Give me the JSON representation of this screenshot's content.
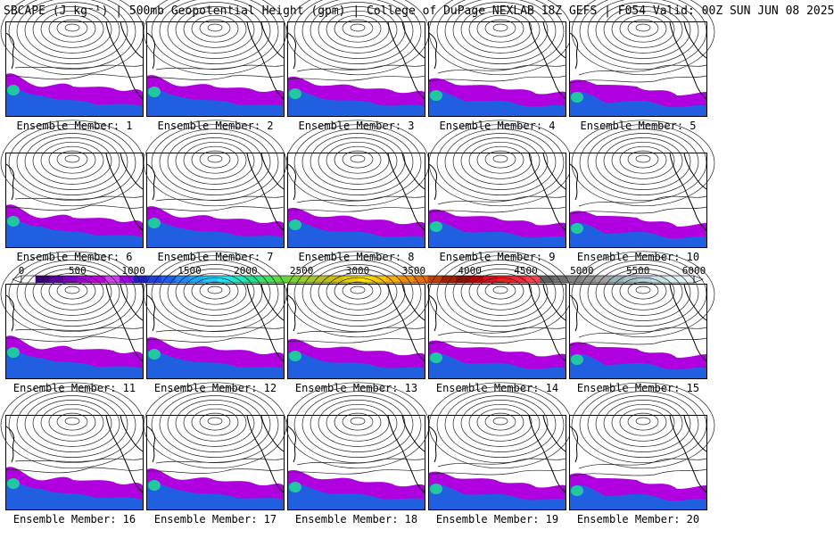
{
  "header": {
    "title": "SBCAPE (J kg⁻¹) | 500mb Geopotential Height (gpm) | College of DuPage NEXLAB 18Z GEFS | F054 Valid: 00Z SUN JUN 08 2025"
  },
  "members": [
    "Ensemble Member: 1",
    "Ensemble Member: 2",
    "Ensemble Member: 3",
    "Ensemble Member: 4",
    "Ensemble Member: 5",
    "Ensemble Member: 6",
    "Ensemble Member: 7",
    "Ensemble Member: 8",
    "Ensemble Member: 9",
    "Ensemble Member: 10",
    "Ensemble Member: 11",
    "Ensemble Member: 12",
    "Ensemble Member: 13",
    "Ensemble Member: 14",
    "Ensemble Member: 15",
    "Ensemble Member: 16",
    "Ensemble Member: 17",
    "Ensemble Member: 18",
    "Ensemble Member: 19",
    "Ensemble Member: 20"
  ],
  "colorbar": {
    "labels": [
      "0",
      "500",
      "1000",
      "1500",
      "2000",
      "2500",
      "3000",
      "3500",
      "4000",
      "4500",
      "5000",
      "5500",
      "6000"
    ],
    "colors": [
      "#ffffff",
      "#3a0078",
      "#5c00a8",
      "#8000c8",
      "#a800d8",
      "#c000e0",
      "#d040e8",
      "#a000f0",
      "#2020c0",
      "#2040e0",
      "#2060f0",
      "#2088f8",
      "#20a8f8",
      "#20c8f8",
      "#20e0f0",
      "#20e8c0",
      "#20e090",
      "#40e060",
      "#60d840",
      "#80d030",
      "#a0c828",
      "#b8c020",
      "#d0c000",
      "#e8d000",
      "#f8e000",
      "#f8c800",
      "#f8b000",
      "#f09000",
      "#e87000",
      "#c04000",
      "#a02000",
      "#901000",
      "#c00000",
      "#d81020",
      "#e82020",
      "#f02838",
      "#f84050",
      "#606060",
      "#707070",
      "#808080",
      "#909090",
      "#a0a0a0",
      "#98b0b8",
      "#a8c0c8",
      "#b8d0d8",
      "#c8e0e8",
      "#d8eef2",
      "#e8f6f8"
    ]
  }
}
